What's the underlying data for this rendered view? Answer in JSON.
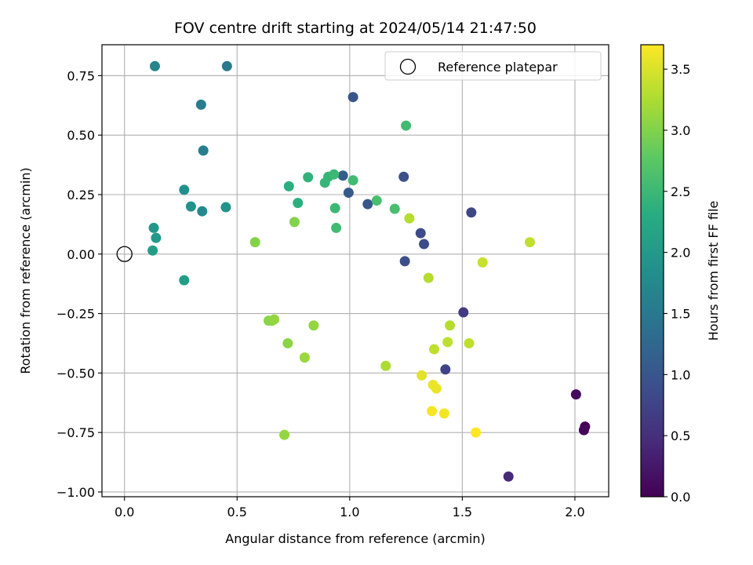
{
  "chart_data": {
    "type": "scatter",
    "title": "FOV centre drift starting at 2024/05/14 21:47:50",
    "xlabel": "Angular distance from reference (arcmin)",
    "ylabel": "Rotation from reference (arcmin)",
    "xlim": [
      -0.1,
      2.15
    ],
    "ylim": [
      -1.02,
      0.88
    ],
    "xticks": [
      0.0,
      0.5,
      1.0,
      1.5,
      2.0
    ],
    "xtick_labels": [
      "0.0",
      "0.5",
      "1.0",
      "1.5",
      "2.0"
    ],
    "yticks": [
      -1.0,
      -0.75,
      -0.5,
      -0.25,
      0.0,
      0.25,
      0.5,
      0.75
    ],
    "ytick_labels": [
      "−1.00",
      "−0.75",
      "−0.50",
      "−0.25",
      "0.00",
      "0.25",
      "0.50",
      "0.75"
    ],
    "grid": true,
    "legend": {
      "placement": "top-right",
      "entries": [
        {
          "label": "Reference platepar",
          "marker": "open-circle"
        }
      ]
    },
    "reference_point": {
      "x": 0.0,
      "y": 0.0
    },
    "colorbar": {
      "label": "Hours from first FF file",
      "colormap": "viridis",
      "range": [
        0.0,
        3.7
      ],
      "ticks": [
        0.0,
        0.5,
        1.0,
        1.5,
        2.0,
        2.5,
        3.0,
        3.5
      ],
      "tick_labels": [
        "0.0",
        "0.5",
        "1.0",
        "1.5",
        "2.0",
        "2.5",
        "3.0",
        "3.5"
      ]
    },
    "points": [
      {
        "x": 2.045,
        "y": -0.725,
        "c": 0.0
      },
      {
        "x": 2.04,
        "y": -0.74,
        "c": 0.05
      },
      {
        "x": 2.005,
        "y": -0.59,
        "c": 0.1
      },
      {
        "x": 1.705,
        "y": -0.935,
        "c": 0.45
      },
      {
        "x": 1.505,
        "y": -0.245,
        "c": 0.65
      },
      {
        "x": 1.425,
        "y": -0.485,
        "c": 0.75
      },
      {
        "x": 1.54,
        "y": 0.175,
        "c": 0.8
      },
      {
        "x": 1.315,
        "y": 0.088,
        "c": 0.85
      },
      {
        "x": 1.33,
        "y": 0.042,
        "c": 0.85
      },
      {
        "x": 1.245,
        "y": -0.03,
        "c": 0.9
      },
      {
        "x": 1.24,
        "y": 0.325,
        "c": 0.9
      },
      {
        "x": 1.08,
        "y": 0.21,
        "c": 1.0
      },
      {
        "x": 1.015,
        "y": 0.66,
        "c": 1.0
      },
      {
        "x": 0.995,
        "y": 0.258,
        "c": 1.05
      },
      {
        "x": 0.97,
        "y": 0.33,
        "c": 1.1
      },
      {
        "x": 0.455,
        "y": 0.79,
        "c": 1.5
      },
      {
        "x": 0.34,
        "y": 0.628,
        "c": 1.55
      },
      {
        "x": 0.35,
        "y": 0.435,
        "c": 1.6
      },
      {
        "x": 0.135,
        "y": 0.79,
        "c": 1.7
      },
      {
        "x": 0.345,
        "y": 0.18,
        "c": 1.75
      },
      {
        "x": 0.265,
        "y": 0.27,
        "c": 1.85
      },
      {
        "x": 0.295,
        "y": 0.2,
        "c": 1.9
      },
      {
        "x": 0.45,
        "y": 0.197,
        "c": 1.9
      },
      {
        "x": 0.13,
        "y": 0.11,
        "c": 1.95
      },
      {
        "x": 0.14,
        "y": 0.068,
        "c": 2.0
      },
      {
        "x": 0.125,
        "y": 0.015,
        "c": 2.05
      },
      {
        "x": 0.265,
        "y": -0.11,
        "c": 2.05
      },
      {
        "x": 0.73,
        "y": 0.285,
        "c": 2.35
      },
      {
        "x": 0.77,
        "y": 0.215,
        "c": 2.35
      },
      {
        "x": 0.815,
        "y": 0.323,
        "c": 2.4
      },
      {
        "x": 0.89,
        "y": 0.3,
        "c": 2.45
      },
      {
        "x": 0.905,
        "y": 0.325,
        "c": 2.45
      },
      {
        "x": 0.93,
        "y": 0.335,
        "c": 2.5
      },
      {
        "x": 0.935,
        "y": 0.193,
        "c": 2.5
      },
      {
        "x": 0.94,
        "y": 0.11,
        "c": 2.55
      },
      {
        "x": 1.015,
        "y": 0.31,
        "c": 2.55
      },
      {
        "x": 1.12,
        "y": 0.225,
        "c": 2.6
      },
      {
        "x": 1.2,
        "y": 0.19,
        "c": 2.6
      },
      {
        "x": 1.25,
        "y": 0.54,
        "c": 2.55
      },
      {
        "x": 0.58,
        "y": 0.05,
        "c": 3.0
      },
      {
        "x": 0.755,
        "y": 0.135,
        "c": 3.0
      },
      {
        "x": 0.64,
        "y": -0.28,
        "c": 3.05
      },
      {
        "x": 0.655,
        "y": -0.28,
        "c": 3.05
      },
      {
        "x": 0.665,
        "y": -0.275,
        "c": 3.1
      },
      {
        "x": 0.725,
        "y": -0.375,
        "c": 3.05
      },
      {
        "x": 0.84,
        "y": -0.3,
        "c": 3.1
      },
      {
        "x": 0.8,
        "y": -0.435,
        "c": 3.15
      },
      {
        "x": 0.71,
        "y": -0.76,
        "c": 3.1
      },
      {
        "x": 1.16,
        "y": -0.47,
        "c": 3.25
      },
      {
        "x": 1.265,
        "y": 0.15,
        "c": 3.3
      },
      {
        "x": 1.35,
        "y": -0.1,
        "c": 3.3
      },
      {
        "x": 1.445,
        "y": -0.3,
        "c": 3.3
      },
      {
        "x": 1.435,
        "y": -0.37,
        "c": 3.35
      },
      {
        "x": 1.375,
        "y": -0.4,
        "c": 3.35
      },
      {
        "x": 1.53,
        "y": -0.375,
        "c": 3.35
      },
      {
        "x": 1.59,
        "y": -0.035,
        "c": 3.4
      },
      {
        "x": 1.8,
        "y": 0.05,
        "c": 3.35
      },
      {
        "x": 1.32,
        "y": -0.51,
        "c": 3.55
      },
      {
        "x": 1.37,
        "y": -0.55,
        "c": 3.6
      },
      {
        "x": 1.385,
        "y": -0.565,
        "c": 3.6
      },
      {
        "x": 1.365,
        "y": -0.66,
        "c": 3.65
      },
      {
        "x": 1.42,
        "y": -0.67,
        "c": 3.65
      },
      {
        "x": 1.56,
        "y": -0.75,
        "c": 3.7
      }
    ]
  }
}
